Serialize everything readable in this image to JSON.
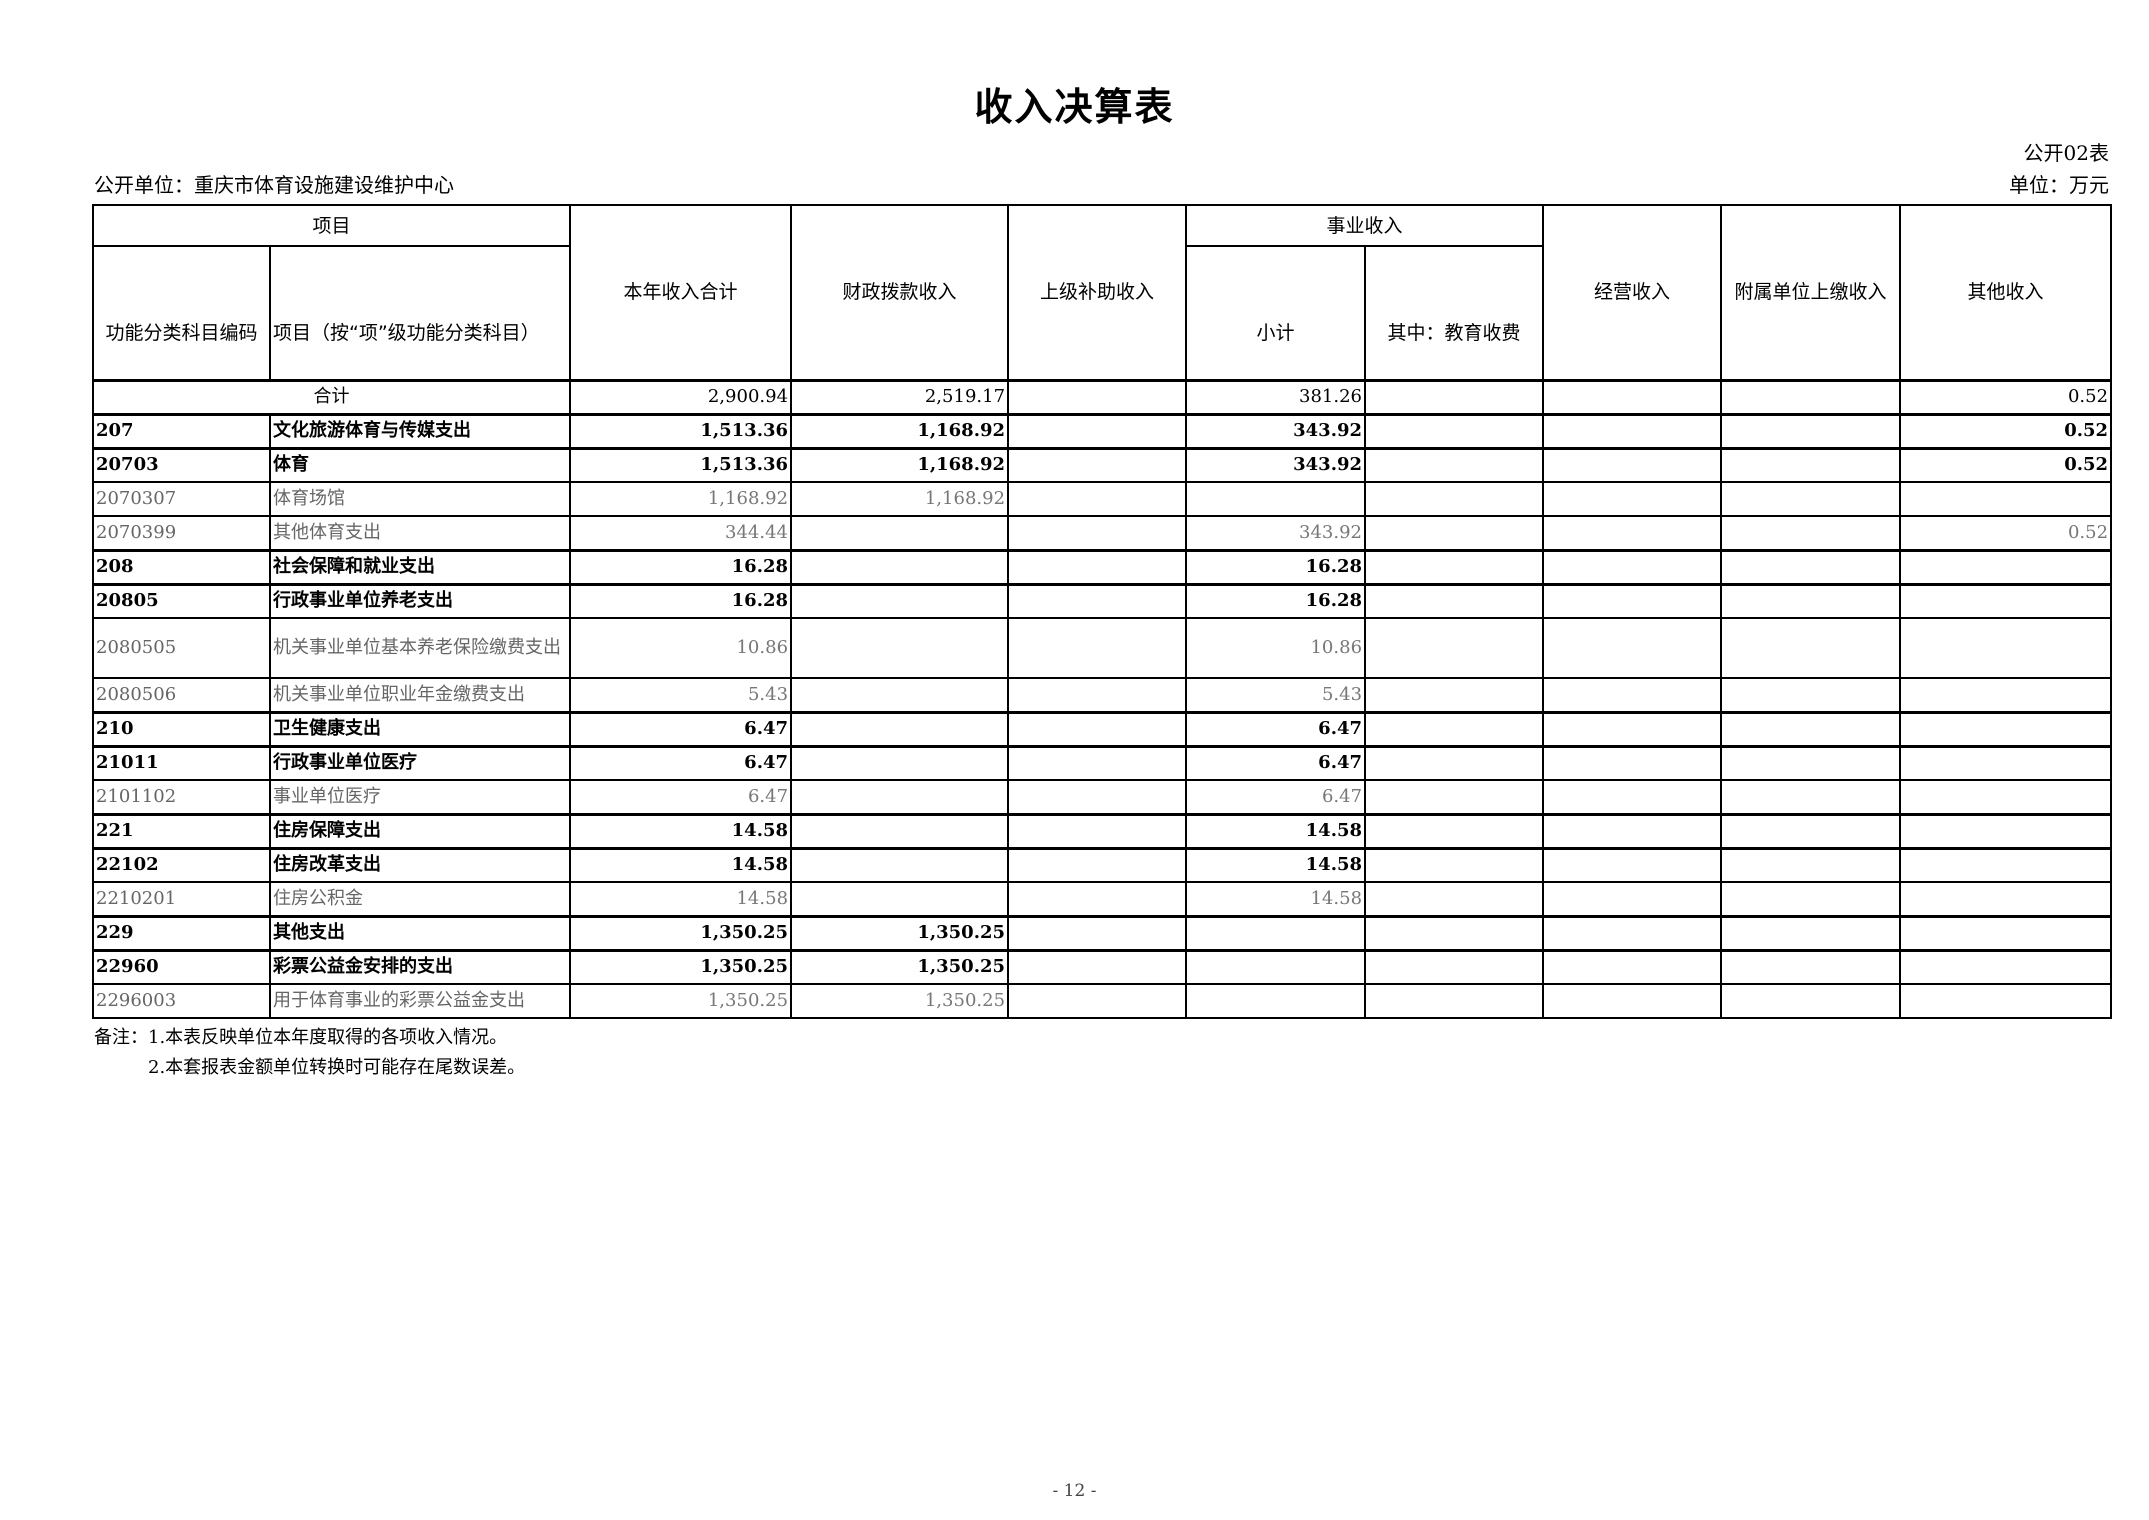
{
  "title": "收入决算表",
  "form_no": "公开02表",
  "unit_label": "公开单位：重庆市体育设施建设维护中心",
  "unit": "单位：万元",
  "headers": {
    "project": "项目",
    "code": "功能分类科目编码",
    "name": "项目（按“项”级功能分类科目）",
    "total": "本年收入合计",
    "fiscal": "财政拨款收入",
    "superior": "上级补助收入",
    "business": "事业收入",
    "business_subtotal": "小计",
    "business_edu": "其中：教育收费",
    "operating": "经营收入",
    "affiliated": "附属单位上缴收入",
    "other": "其他收入"
  },
  "total_row": {
    "label": "合计",
    "total": "2,900.94",
    "fiscal": "2,519.17",
    "superior": "",
    "business_subtotal": "381.26",
    "business_edu": "",
    "operating": "",
    "affiliated": "",
    "other": "0.52"
  },
  "rows": [
    {
      "code": "207",
      "name": "文化旅游体育与传媒支出",
      "level": 1,
      "total": "1,513.36",
      "fiscal": "1,168.92",
      "superior": "",
      "business_subtotal": "343.92",
      "business_edu": "",
      "operating": "",
      "affiliated": "",
      "other": "0.52"
    },
    {
      "code": "20703",
      "name": "体育",
      "level": 2,
      "total": "1,513.36",
      "fiscal": "1,168.92",
      "superior": "",
      "business_subtotal": "343.92",
      "business_edu": "",
      "operating": "",
      "affiliated": "",
      "other": "0.52"
    },
    {
      "code": "2070307",
      "name": "体育场馆",
      "level": 3,
      "total": "1,168.92",
      "fiscal": "1,168.92",
      "superior": "",
      "business_subtotal": "",
      "business_edu": "",
      "operating": "",
      "affiliated": "",
      "other": ""
    },
    {
      "code": "2070399",
      "name": "其他体育支出",
      "level": 3,
      "total": "344.44",
      "fiscal": "",
      "superior": "",
      "business_subtotal": "343.92",
      "business_edu": "",
      "operating": "",
      "affiliated": "",
      "other": "0.52"
    },
    {
      "code": "208",
      "name": "社会保障和就业支出",
      "level": 1,
      "total": "16.28",
      "fiscal": "",
      "superior": "",
      "business_subtotal": "16.28",
      "business_edu": "",
      "operating": "",
      "affiliated": "",
      "other": ""
    },
    {
      "code": "20805",
      "name": "行政事业单位养老支出",
      "level": 2,
      "total": "16.28",
      "fiscal": "",
      "superior": "",
      "business_subtotal": "16.28",
      "business_edu": "",
      "operating": "",
      "affiliated": "",
      "other": ""
    },
    {
      "code": "2080505",
      "name": "机关事业单位基本养老保险缴费支出",
      "level": 3,
      "total": "10.86",
      "fiscal": "",
      "superior": "",
      "business_subtotal": "10.86",
      "business_edu": "",
      "operating": "",
      "affiliated": "",
      "other": ""
    },
    {
      "code": "2080506",
      "name": "机关事业单位职业年金缴费支出",
      "level": 3,
      "total": "5.43",
      "fiscal": "",
      "superior": "",
      "business_subtotal": "5.43",
      "business_edu": "",
      "operating": "",
      "affiliated": "",
      "other": ""
    },
    {
      "code": "210",
      "name": "卫生健康支出",
      "level": 1,
      "total": "6.47",
      "fiscal": "",
      "superior": "",
      "business_subtotal": "6.47",
      "business_edu": "",
      "operating": "",
      "affiliated": "",
      "other": ""
    },
    {
      "code": "21011",
      "name": "行政事业单位医疗",
      "level": 2,
      "total": "6.47",
      "fiscal": "",
      "superior": "",
      "business_subtotal": "6.47",
      "business_edu": "",
      "operating": "",
      "affiliated": "",
      "other": ""
    },
    {
      "code": "2101102",
      "name": "事业单位医疗",
      "level": 3,
      "total": "6.47",
      "fiscal": "",
      "superior": "",
      "business_subtotal": "6.47",
      "business_edu": "",
      "operating": "",
      "affiliated": "",
      "other": ""
    },
    {
      "code": "221",
      "name": "住房保障支出",
      "level": 1,
      "total": "14.58",
      "fiscal": "",
      "superior": "",
      "business_subtotal": "14.58",
      "business_edu": "",
      "operating": "",
      "affiliated": "",
      "other": ""
    },
    {
      "code": "22102",
      "name": "住房改革支出",
      "level": 2,
      "total": "14.58",
      "fiscal": "",
      "superior": "",
      "business_subtotal": "14.58",
      "business_edu": "",
      "operating": "",
      "affiliated": "",
      "other": ""
    },
    {
      "code": "2210201",
      "name": "住房公积金",
      "level": 3,
      "total": "14.58",
      "fiscal": "",
      "superior": "",
      "business_subtotal": "14.58",
      "business_edu": "",
      "operating": "",
      "affiliated": "",
      "other": ""
    },
    {
      "code": "229",
      "name": "其他支出",
      "level": 1,
      "total": "1,350.25",
      "fiscal": "1,350.25",
      "superior": "",
      "business_subtotal": "",
      "business_edu": "",
      "operating": "",
      "affiliated": "",
      "other": ""
    },
    {
      "code": "22960",
      "name": "彩票公益金安排的支出",
      "level": 2,
      "total": "1,350.25",
      "fiscal": "1,350.25",
      "superior": "",
      "business_subtotal": "",
      "business_edu": "",
      "operating": "",
      "affiliated": "",
      "other": ""
    },
    {
      "code": "2296003",
      "name": "用于体育事业的彩票公益金支出",
      "level": 3,
      "total": "1,350.25",
      "fiscal": "1,350.25",
      "superior": "",
      "business_subtotal": "",
      "business_edu": "",
      "operating": "",
      "affiliated": "",
      "other": ""
    }
  ],
  "notes": [
    "备注：1.本表反映单位本年度取得的各项收入情况。",
    "2.本套报表金额单位转换时可能存在尾数误差。"
  ],
  "page_number": "- 12 -"
}
